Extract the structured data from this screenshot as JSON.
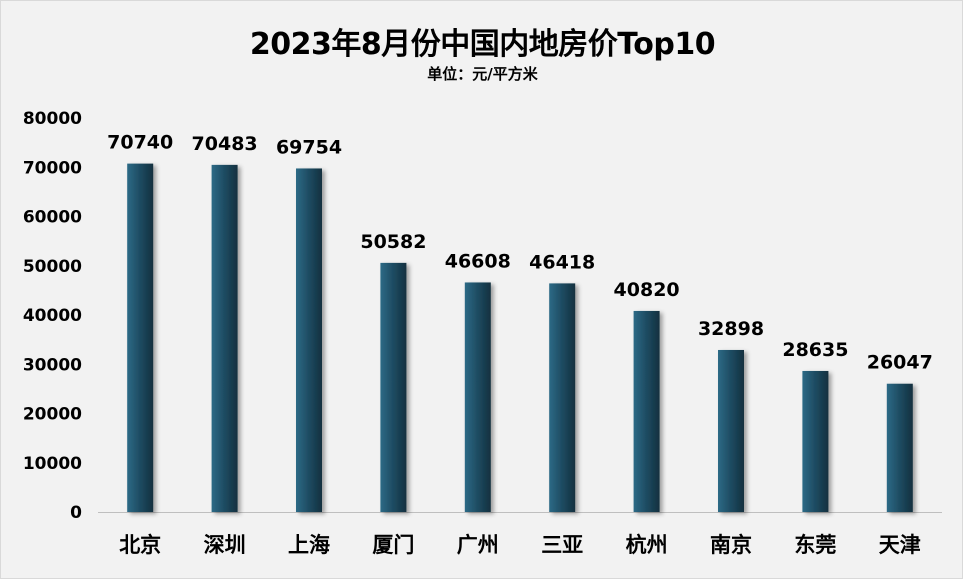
{
  "chart_data": {
    "type": "bar",
    "title": "2023年8月份中国内地房价Top10",
    "subtitle": "单位：元/平方米",
    "categories": [
      "北京",
      "深圳",
      "上海",
      "厦门",
      "广州",
      "三亚",
      "杭州",
      "南京",
      "东莞",
      "天津"
    ],
    "values": [
      70740,
      70483,
      69754,
      50582,
      46608,
      46418,
      40820,
      32898,
      28635,
      26047
    ],
    "ylim": [
      0,
      80000
    ],
    "yticks": [
      "0",
      "10000",
      "20000",
      "30000",
      "40000",
      "50000",
      "60000",
      "70000",
      "80000"
    ],
    "grid": false,
    "legend": "none",
    "bar_color": "#1f4e65"
  }
}
